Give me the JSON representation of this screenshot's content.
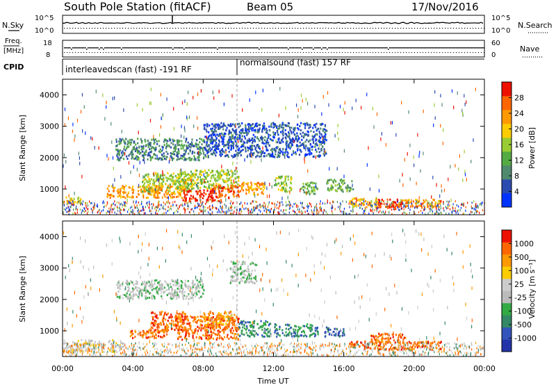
{
  "header": {
    "title": "South Pole Station (fitACF)",
    "beam": "Beam 05",
    "date": "17/Nov/2016"
  },
  "top_panels": {
    "nsky": {
      "label": "N.Sky",
      "ticks": [
        "10^5",
        "10^0"
      ],
      "right_label": "N.Search",
      "right_ticks": [
        "10^5",
        "10^0"
      ]
    },
    "freq": {
      "label_line1": "Freq.",
      "label_line2": "[MHz]",
      "ticks": [
        "18",
        "8"
      ],
      "right_label": "Nave",
      "right_ticks": [
        "60",
        "0"
      ]
    },
    "cpid": {
      "label": "CPID",
      "segments": [
        {
          "text": "interleavedscan (fast) -191 RF"
        },
        {
          "text": "normalsound (fast) 157 RF"
        }
      ]
    }
  },
  "power_panel": {
    "ylabel": "Slant Range [km]",
    "colorbar_label": "Power [dB]",
    "colorbar_ticks": [
      "28",
      "24",
      "20",
      "16",
      "12",
      "8",
      "4"
    ],
    "colors": [
      "#0033ff",
      "#2a4bb0",
      "#4f8a6e",
      "#55aa44",
      "#99cc33",
      "#ffcc00",
      "#ff9900",
      "#ff6600",
      "#ee1100"
    ]
  },
  "velocity_panel": {
    "ylabel": "Slant Range [km]",
    "colorbar_label": "Velocity [m s⁻¹]",
    "colorbar_ticks": [
      "1000",
      "500",
      "100",
      "25",
      "-25",
      "-100",
      "-500",
      "-1000"
    ],
    "colors": [
      "#2233aa",
      "#3355bb",
      "#338866",
      "#33aa44",
      "#bbbbbb",
      "#cccccc",
      "#ffcc00",
      "#ff9900",
      "#ff6600",
      "#ee1100"
    ]
  },
  "chart_data": {
    "type": "heatmap",
    "xlabel": "Time UT",
    "x_ticks": [
      "00:00",
      "04:00",
      "08:00",
      "12:00",
      "16:00",
      "20:00",
      "00:00"
    ],
    "y_ticks": [
      "1000",
      "2000",
      "3000",
      "4000"
    ],
    "xlim_hours": [
      0,
      24
    ],
    "ylim_km": [
      180,
      4500
    ],
    "mode_change_hour": 10,
    "power_regions": [
      {
        "t0": 0.0,
        "t1": 1.0,
        "r0": 500,
        "r1": 750,
        "level": 5
      },
      {
        "t0": 2.5,
        "t1": 5.5,
        "r0": 700,
        "r1": 1100,
        "level": 6
      },
      {
        "t0": 4.5,
        "t1": 7.5,
        "r0": 900,
        "r1": 1500,
        "level": 4
      },
      {
        "t0": 5.0,
        "t1": 7.0,
        "r0": 700,
        "r1": 1100,
        "level": 6
      },
      {
        "t0": 6.5,
        "t1": 10.0,
        "r0": 1000,
        "r1": 1600,
        "level": 4
      },
      {
        "t0": 6.8,
        "t1": 9.0,
        "r0": 600,
        "r1": 950,
        "level": 8
      },
      {
        "t0": 8.5,
        "t1": 10.0,
        "r0": 700,
        "r1": 1100,
        "level": 7
      },
      {
        "t0": 10.0,
        "t1": 11.5,
        "r0": 800,
        "r1": 1200,
        "level": 6
      },
      {
        "t0": 12.0,
        "t1": 13.0,
        "r0": 900,
        "r1": 1400,
        "level": 4
      },
      {
        "t0": 13.5,
        "t1": 14.5,
        "r0": 800,
        "r1": 1200,
        "level": 3
      },
      {
        "t0": 15.0,
        "t1": 16.5,
        "r0": 900,
        "r1": 1300,
        "level": 3
      },
      {
        "t0": 16.3,
        "t1": 18.0,
        "r0": 400,
        "r1": 700,
        "level": 5
      },
      {
        "t0": 17.8,
        "t1": 19.3,
        "r0": 350,
        "r1": 650,
        "level": 8
      },
      {
        "t0": 19.0,
        "t1": 21.5,
        "r0": 400,
        "r1": 650,
        "level": 6
      },
      {
        "t0": 3.0,
        "t1": 8.0,
        "r0": 1900,
        "r1": 2600,
        "level": 2
      },
      {
        "t0": 8.0,
        "t1": 15.0,
        "r0": 2000,
        "r1": 3100,
        "level": 1
      }
    ],
    "velocity_regions": [
      {
        "t0": 3.8,
        "t1": 6.0,
        "r0": 750,
        "r1": 1050,
        "level": 8
      },
      {
        "t0": 5.0,
        "t1": 7.0,
        "r0": 1000,
        "r1": 1600,
        "level": 8
      },
      {
        "t0": 6.5,
        "t1": 10.0,
        "r0": 700,
        "r1": 1450,
        "level": 8
      },
      {
        "t0": 8.0,
        "t1": 9.8,
        "r0": 1100,
        "r1": 1600,
        "level": 7
      },
      {
        "t0": 10.0,
        "t1": 11.8,
        "r0": 800,
        "r1": 1300,
        "level": 2
      },
      {
        "t0": 12.0,
        "t1": 14.5,
        "r0": 800,
        "r1": 1200,
        "level": 2
      },
      {
        "t0": 14.8,
        "t1": 16.0,
        "r0": 800,
        "r1": 1100,
        "level": 1
      },
      {
        "t0": 16.3,
        "t1": 21.5,
        "r0": 380,
        "r1": 650,
        "level": 8
      },
      {
        "t0": 17.5,
        "t1": 19.5,
        "r0": 600,
        "r1": 900,
        "level": 8
      },
      {
        "t0": 0.0,
        "t1": 3.5,
        "r0": 300,
        "r1": 700,
        "level": 5
      },
      {
        "t0": 3.0,
        "t1": 8.0,
        "r0": 2000,
        "r1": 2600,
        "level": 4
      },
      {
        "t0": 9.5,
        "t1": 11.0,
        "r0": 2500,
        "r1": 3200,
        "level": 4
      }
    ]
  }
}
